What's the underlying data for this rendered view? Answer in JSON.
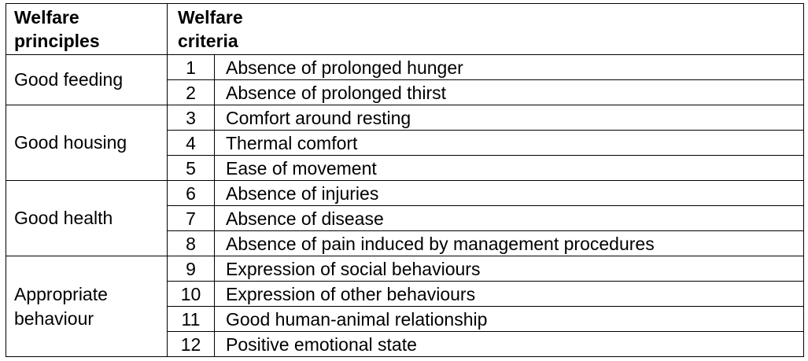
{
  "table": {
    "headers": {
      "principle_line1": "Welfare",
      "principle_line2": "principles",
      "criteria_line1": "Welfare",
      "criteria_line2": "criteria"
    },
    "groups": [
      {
        "principle": "Good feeding",
        "criteria": [
          {
            "num": "1",
            "text": "Absence of  prolonged hunger"
          },
          {
            "num": "2",
            "text": "Absence of  prolonged thirst"
          }
        ]
      },
      {
        "principle": "Good housing",
        "criteria": [
          {
            "num": "3",
            "text": "Comfort around resting"
          },
          {
            "num": "4",
            "text": "Thermal comfort"
          },
          {
            "num": "5",
            "text": "Ease of movement"
          }
        ]
      },
      {
        "principle": "Good health",
        "criteria": [
          {
            "num": "6",
            "text": "Absence of injuries"
          },
          {
            "num": "7",
            "text": "Absence of disease"
          },
          {
            "num": "8",
            "text": "Absence of pain induced by management procedures"
          }
        ]
      },
      {
        "principle_line1": "Appropriate",
        "principle_line2": "behaviour",
        "criteria": [
          {
            "num": "9",
            "text": "Expression of social behaviours"
          },
          {
            "num": "10",
            "text": "Expression of other behaviours"
          },
          {
            "num": "11",
            "text": "Good human-animal relationship"
          },
          {
            "num": "12",
            "text": "Positive emotional state"
          }
        ]
      }
    ]
  }
}
